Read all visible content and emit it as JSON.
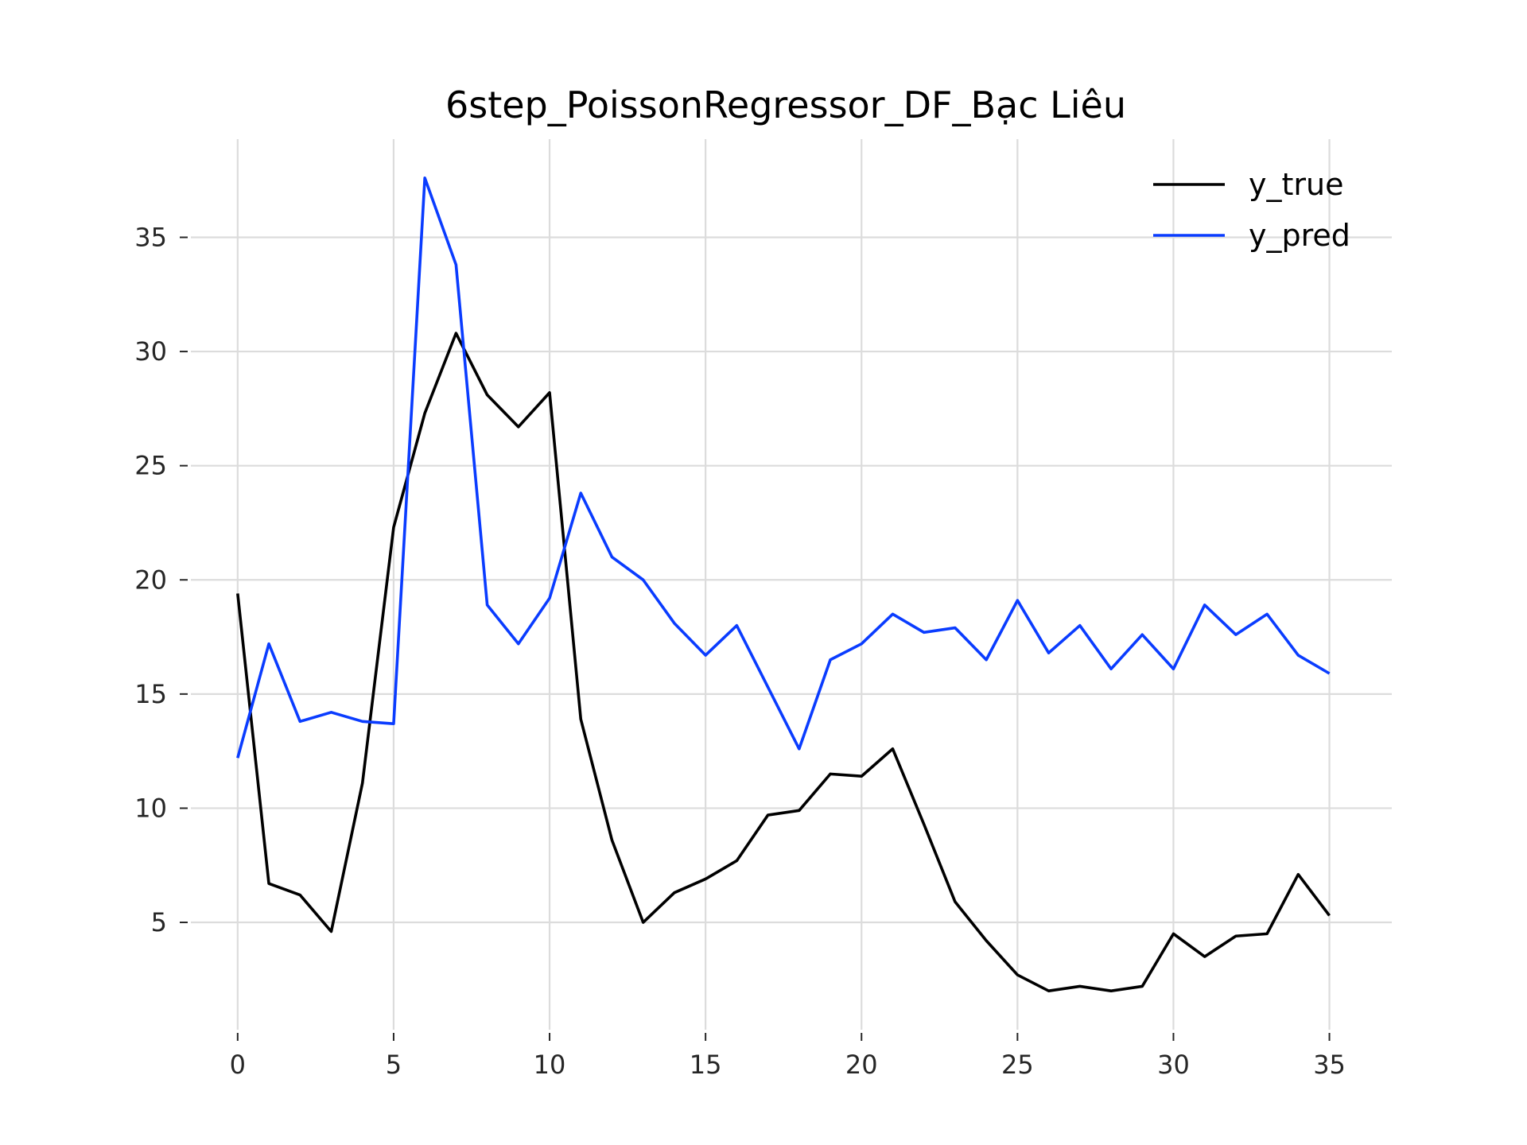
{
  "chart_data": {
    "type": "line",
    "title": "6step_PoissonRegressor_DF_Bạc Liêu",
    "xlabel": "",
    "ylabel": "",
    "xlim": [
      -1.5,
      37
    ],
    "ylim": [
      0.3,
      39.3
    ],
    "x_ticks": [
      0,
      5,
      10,
      15,
      20,
      25,
      30,
      35
    ],
    "y_ticks": [
      5,
      10,
      15,
      20,
      25,
      30,
      35
    ],
    "grid": true,
    "legend_position": "top-right",
    "x": [
      0,
      1,
      2,
      3,
      4,
      5,
      6,
      7,
      8,
      9,
      10,
      11,
      12,
      13,
      14,
      15,
      16,
      17,
      18,
      19,
      20,
      21,
      22,
      23,
      24,
      25,
      26,
      27,
      28,
      29,
      30,
      31,
      32,
      33,
      34,
      35
    ],
    "series": [
      {
        "name": "y_true",
        "color": "#000000",
        "values": [
          19.4,
          6.7,
          6.2,
          4.6,
          11.1,
          22.3,
          27.3,
          30.8,
          28.1,
          26.7,
          28.2,
          13.9,
          8.6,
          5.0,
          6.3,
          6.9,
          7.7,
          9.7,
          9.9,
          11.5,
          11.4,
          12.6,
          9.3,
          5.9,
          4.2,
          2.7,
          2.0,
          2.2,
          2.0,
          2.2,
          4.5,
          3.5,
          4.4,
          4.5,
          7.1,
          5.3
        ]
      },
      {
        "name": "y_pred",
        "color": "#0a3cff",
        "values": [
          12.2,
          17.2,
          13.8,
          14.2,
          13.8,
          13.7,
          37.6,
          33.8,
          18.9,
          17.2,
          19.2,
          23.8,
          21.0,
          20.0,
          18.1,
          16.7,
          18.0,
          15.3,
          12.6,
          16.5,
          17.2,
          18.5,
          17.7,
          17.9,
          16.5,
          19.1,
          16.8,
          18.0,
          16.1,
          17.6,
          16.1,
          18.9,
          17.6,
          18.5,
          16.7,
          15.9
        ]
      }
    ]
  }
}
